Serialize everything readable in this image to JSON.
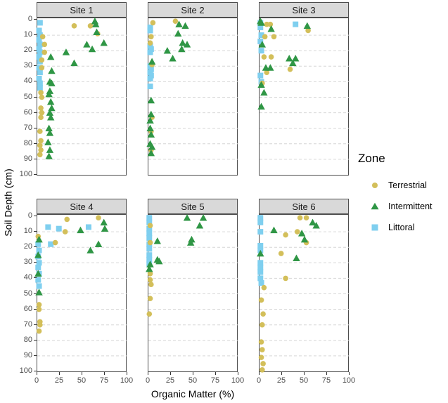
{
  "figure": {
    "xlabel": "Organic Matter (%)",
    "ylabel": "Soil Depth (cm)"
  },
  "legend": {
    "title": "Zone",
    "items": [
      {
        "label": "Terrestrial",
        "marker": "circle",
        "color": "#d3bf5a"
      },
      {
        "label": "Intermittent",
        "marker": "triangle",
        "color": "#2f9645"
      },
      {
        "label": "Littoral",
        "marker": "square",
        "color": "#7fcfef"
      }
    ]
  },
  "chart_data": {
    "type": "scatter",
    "title": "",
    "xlabel": "Organic Matter (%)",
    "ylabel": "Soil Depth (cm)",
    "xlim": [
      0,
      100
    ],
    "ylim": [
      0,
      100
    ],
    "y_reversed": true,
    "x_ticks": [
      0,
      25,
      50,
      75,
      100
    ],
    "y_ticks": [
      0,
      10,
      20,
      30,
      40,
      50,
      60,
      70,
      80,
      90,
      100
    ],
    "grid": "horizontal-dashed",
    "legend_position": "right",
    "legend_title": "Zone",
    "series": [
      {
        "name": "Terrestrial",
        "marker": "circle",
        "color": "#d3bf5a"
      },
      {
        "name": "Intermittent",
        "marker": "triangle",
        "color": "#2f9645"
      },
      {
        "name": "Littoral",
        "marker": "square",
        "color": "#7fcfef"
      }
    ],
    "draw_order": [
      "Littoral",
      "Terrestrial",
      "Intermittent"
    ],
    "facets": [
      {
        "label": "Site 1",
        "points": {
          "Terrestrial": [
            [
              41,
              4
            ],
            [
              59,
              4
            ],
            [
              67,
              9
            ],
            [
              6,
              11
            ],
            [
              8,
              16
            ],
            [
              8,
              21
            ],
            [
              5,
              26
            ],
            [
              5,
              31
            ],
            [
              4,
              47
            ],
            [
              5,
              50
            ],
            [
              4,
              57
            ],
            [
              5,
              60
            ],
            [
              4,
              63
            ],
            [
              3,
              72
            ],
            [
              4,
              78
            ],
            [
              3,
              81
            ],
            [
              4,
              84
            ],
            [
              3,
              87
            ]
          ],
          "Intermittent": [
            [
              64,
              1
            ],
            [
              65,
              3
            ],
            [
              66,
              8
            ],
            [
              74,
              15
            ],
            [
              55,
              16
            ],
            [
              61,
              19
            ],
            [
              32,
              21
            ],
            [
              15,
              24
            ],
            [
              41,
              28
            ],
            [
              16,
              33
            ],
            [
              14,
              40
            ],
            [
              16,
              41
            ],
            [
              14,
              46
            ],
            [
              13,
              48
            ],
            [
              15,
              53
            ],
            [
              16,
              57
            ],
            [
              14,
              60
            ],
            [
              15,
              63
            ],
            [
              13,
              70
            ],
            [
              14,
              73
            ],
            [
              12,
              79
            ],
            [
              14,
              84
            ],
            [
              13,
              88
            ]
          ],
          "Littoral": [
            [
              3,
              2
            ],
            [
              2,
              7
            ],
            [
              3,
              10
            ],
            [
              2,
              13
            ],
            [
              3,
              16
            ],
            [
              2,
              19
            ],
            [
              3,
              21
            ],
            [
              2,
              24
            ],
            [
              3,
              27
            ],
            [
              2,
              31
            ],
            [
              3,
              34
            ],
            [
              2,
              38
            ],
            [
              3,
              41
            ],
            [
              3,
              44
            ]
          ]
        }
      },
      {
        "label": "Site 2",
        "points": {
          "Terrestrial": [
            [
              30,
              1
            ],
            [
              5,
              2
            ],
            [
              3,
              11
            ],
            [
              2,
              15
            ],
            [
              4,
              29
            ],
            [
              4,
              63
            ],
            [
              3,
              72
            ],
            [
              3,
              84
            ]
          ],
          "Intermittent": [
            [
              34,
              3
            ],
            [
              41,
              4
            ],
            [
              33,
              9
            ],
            [
              38,
              15
            ],
            [
              43,
              16
            ],
            [
              37,
              19
            ],
            [
              21,
              20
            ],
            [
              27,
              25
            ],
            [
              4,
              27
            ],
            [
              3,
              52
            ],
            [
              3,
              61
            ],
            [
              2,
              65
            ],
            [
              2,
              70
            ],
            [
              3,
              74
            ],
            [
              2,
              80
            ],
            [
              4,
              82
            ],
            [
              3,
              86
            ]
          ],
          "Littoral": [
            [
              2,
              5
            ],
            [
              2,
              7
            ],
            [
              2,
              17
            ],
            [
              3,
              19
            ],
            [
              2,
              21
            ],
            [
              2,
              30
            ],
            [
              3,
              32
            ],
            [
              2,
              34
            ],
            [
              3,
              36
            ],
            [
              2,
              38
            ],
            [
              2,
              43
            ]
          ]
        }
      },
      {
        "label": "Site 3",
        "points": {
          "Terrestrial": [
            [
              8,
              3
            ],
            [
              12,
              3
            ],
            [
              54,
              7
            ],
            [
              6,
              11
            ],
            [
              16,
              11
            ],
            [
              5,
              24
            ],
            [
              13,
              24
            ],
            [
              34,
              32
            ],
            [
              8,
              34
            ],
            [
              3,
              41
            ]
          ],
          "Intermittent": [
            [
              1,
              1
            ],
            [
              2,
              2
            ],
            [
              53,
              4
            ],
            [
              13,
              6
            ],
            [
              3,
              16
            ],
            [
              33,
              25
            ],
            [
              40,
              25
            ],
            [
              37,
              28
            ],
            [
              7,
              31
            ],
            [
              12,
              31
            ],
            [
              2,
              42
            ],
            [
              5,
              47
            ],
            [
              2,
              56
            ]
          ],
          "Littoral": [
            [
              1,
              2
            ],
            [
              40,
              3
            ],
            [
              1,
              5
            ],
            [
              2,
              10
            ],
            [
              1,
              14
            ],
            [
              2,
              20
            ],
            [
              1,
              36
            ],
            [
              2,
              40
            ]
          ]
        }
      },
      {
        "label": "Site 4",
        "points": {
          "Terrestrial": [
            [
              68,
              1
            ],
            [
              33,
              2
            ],
            [
              31,
              10
            ],
            [
              1,
              13
            ],
            [
              20,
              17
            ],
            [
              2,
              57
            ],
            [
              2,
              60
            ],
            [
              3,
              68
            ],
            [
              3,
              70
            ],
            [
              2,
              74
            ]
          ],
          "Intermittent": [
            [
              74,
              4
            ],
            [
              75,
              8
            ],
            [
              48,
              9
            ],
            [
              2,
              15
            ],
            [
              68,
              18
            ],
            [
              59,
              22
            ],
            [
              1,
              25
            ],
            [
              1,
              37
            ],
            [
              2,
              49
            ]
          ],
          "Littoral": [
            [
              12,
              7
            ],
            [
              57,
              7
            ],
            [
              24,
              8
            ],
            [
              15,
              18
            ],
            [
              1,
              18
            ],
            [
              2,
              22
            ],
            [
              1,
              26
            ],
            [
              2,
              30
            ],
            [
              1,
              33
            ],
            [
              2,
              37
            ],
            [
              1,
              41
            ],
            [
              2,
              45
            ]
          ]
        }
      },
      {
        "label": "Site 5",
        "points": {
          "Terrestrial": [
            [
              2,
              6
            ],
            [
              2,
              17
            ],
            [
              2,
              37
            ],
            [
              2,
              41
            ],
            [
              3,
              44
            ],
            [
              2,
              53
            ],
            [
              1,
              63
            ]
          ],
          "Intermittent": [
            [
              43,
              1
            ],
            [
              61,
              1
            ],
            [
              57,
              6
            ],
            [
              48,
              15
            ],
            [
              10,
              16
            ],
            [
              47,
              17
            ],
            [
              10,
              28
            ],
            [
              12,
              29
            ],
            [
              2,
              31
            ],
            [
              1,
              34
            ]
          ],
          "Littoral": [
            [
              1,
              1
            ],
            [
              1,
              4
            ],
            [
              1,
              8
            ],
            [
              1,
              11
            ],
            [
              1,
              14
            ],
            [
              1,
              18
            ],
            [
              1,
              21
            ],
            [
              1,
              25
            ],
            [
              1,
              28
            ],
            [
              1,
              31
            ]
          ]
        }
      },
      {
        "label": "Site 6",
        "points": {
          "Terrestrial": [
            [
              45,
              1
            ],
            [
              52,
              1
            ],
            [
              42,
              10
            ],
            [
              29,
              12
            ],
            [
              52,
              17
            ],
            [
              24,
              24
            ],
            [
              29,
              40
            ],
            [
              5,
              46
            ],
            [
              2,
              54
            ],
            [
              4,
              63
            ],
            [
              3,
              70
            ],
            [
              2,
              81
            ],
            [
              3,
              86
            ],
            [
              2,
              91
            ],
            [
              4,
              95
            ],
            [
              3,
              99
            ]
          ],
          "Intermittent": [
            [
              59,
              4
            ],
            [
              63,
              6
            ],
            [
              16,
              9
            ],
            [
              47,
              11
            ],
            [
              50,
              15
            ],
            [
              1,
              24
            ],
            [
              41,
              27
            ]
          ],
          "Littoral": [
            [
              1,
              1
            ],
            [
              1,
              4
            ],
            [
              1,
              10
            ],
            [
              1,
              19
            ],
            [
              1,
              22
            ],
            [
              1,
              30
            ],
            [
              1,
              33
            ],
            [
              1,
              36
            ],
            [
              1,
              40
            ],
            [
              2,
              43
            ]
          ]
        }
      }
    ]
  }
}
